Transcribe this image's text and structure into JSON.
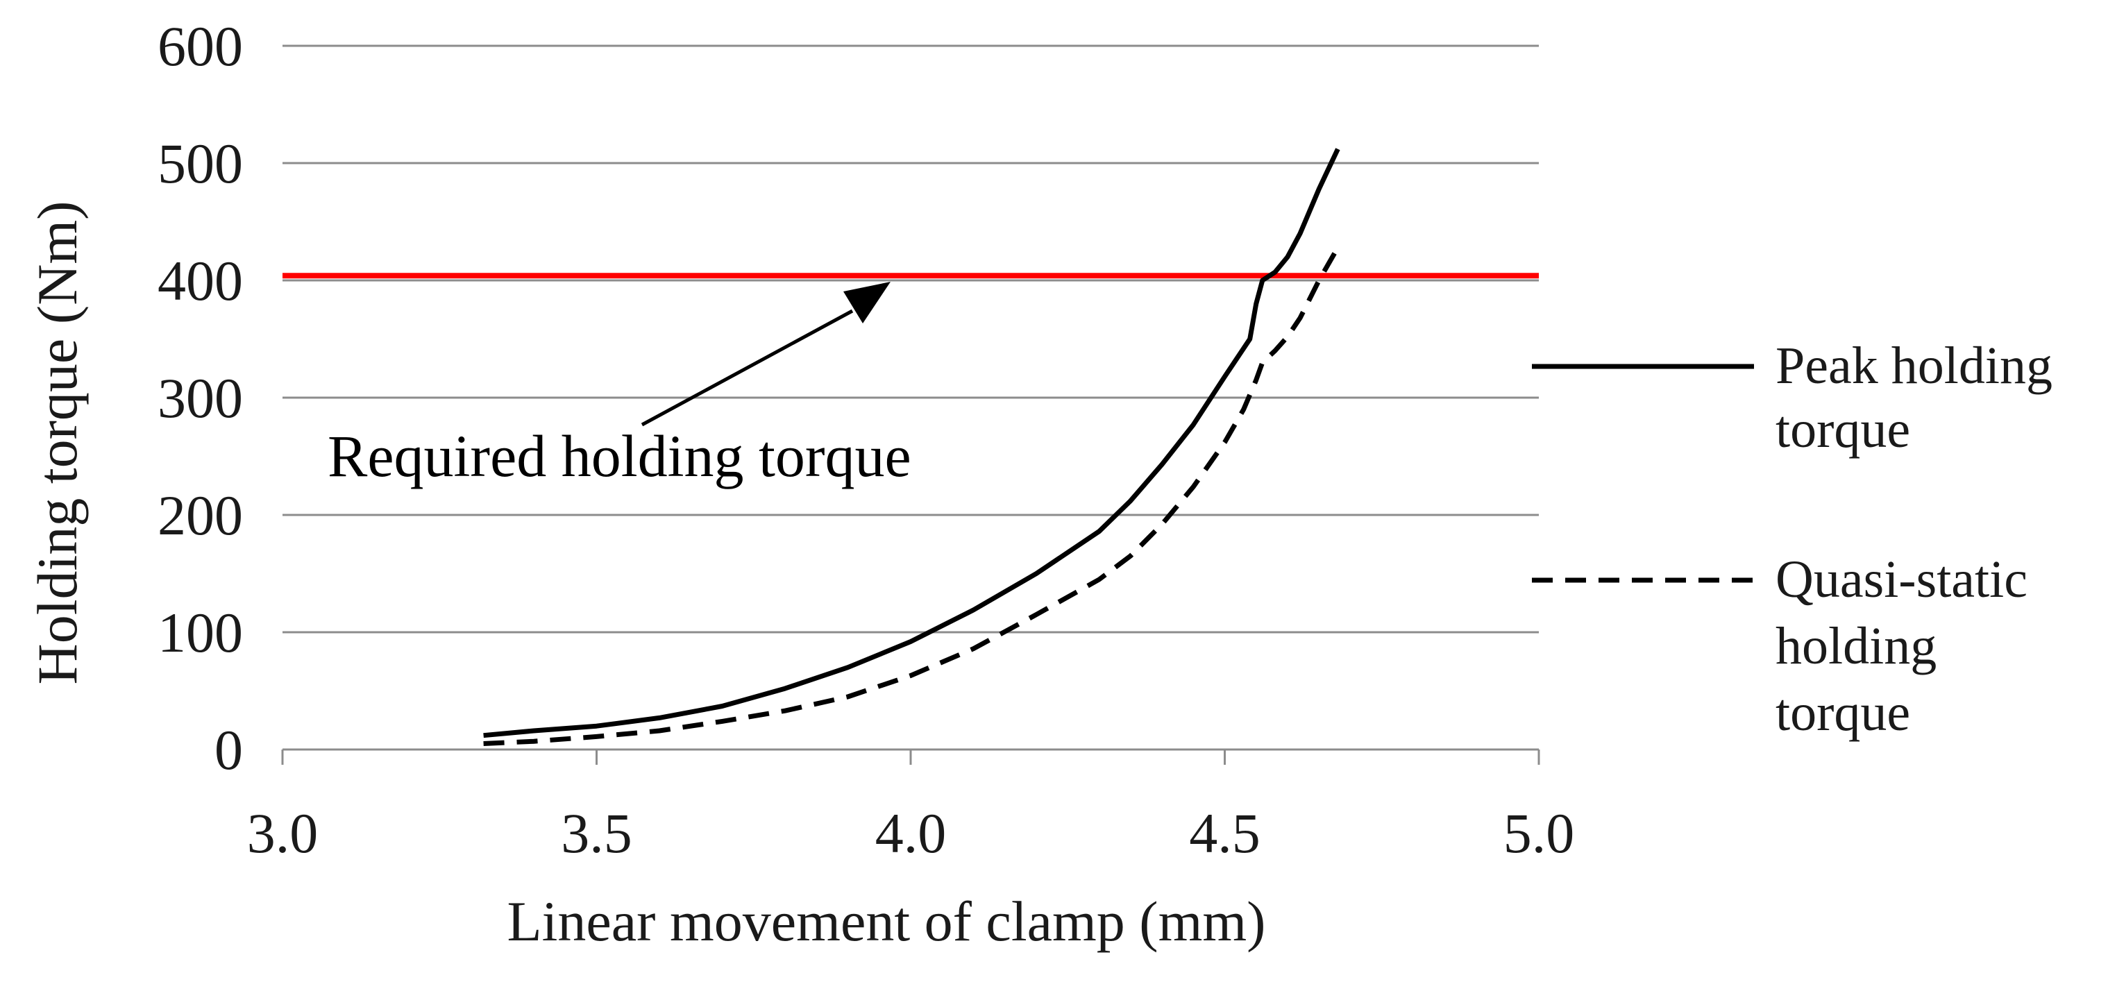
{
  "chart_data": {
    "type": "line",
    "xlabel": "Linear movement of clamp (mm)",
    "ylabel": "Holding torque (Nm)",
    "xlim": [
      3.0,
      5.0
    ],
    "ylim": [
      0,
      600
    ],
    "x_ticks": [
      "3.0",
      "3.5",
      "4.0",
      "4.5",
      "5.0"
    ],
    "y_ticks": [
      "0",
      "100",
      "200",
      "300",
      "400",
      "500",
      "600"
    ],
    "grid": "horizontal",
    "legend_position": "right",
    "reference_line": {
      "y": 404,
      "color": "#ff0000"
    },
    "annotation": {
      "text": "Required holding torque"
    },
    "series": [
      {
        "name": "Peak holding torque",
        "style": "solid",
        "color": "#000000",
        "x": [
          3.32,
          3.4,
          3.5,
          3.6,
          3.7,
          3.8,
          3.9,
          4.0,
          4.1,
          4.2,
          4.3,
          4.35,
          4.4,
          4.45,
          4.5,
          4.54,
          4.55,
          4.56,
          4.58,
          4.6,
          4.62,
          4.65,
          4.68
        ],
        "values": [
          12,
          16,
          20,
          27,
          37,
          52,
          70,
          92,
          119,
          150,
          186,
          212,
          243,
          277,
          318,
          350,
          380,
          400,
          407,
          420,
          440,
          478,
          512
        ]
      },
      {
        "name": "Quasi-static holding torque",
        "style": "dashed",
        "color": "#000000",
        "x": [
          3.32,
          3.4,
          3.5,
          3.6,
          3.7,
          3.8,
          3.9,
          4.0,
          4.1,
          4.2,
          4.3,
          4.35,
          4.4,
          4.45,
          4.5,
          4.53,
          4.55,
          4.56,
          4.58,
          4.6,
          4.62,
          4.65,
          4.68
        ],
        "values": [
          5,
          7,
          11,
          16,
          24,
          33,
          45,
          63,
          86,
          115,
          145,
          165,
          192,
          224,
          262,
          290,
          315,
          330,
          340,
          352,
          368,
          400,
          428
        ]
      }
    ]
  }
}
